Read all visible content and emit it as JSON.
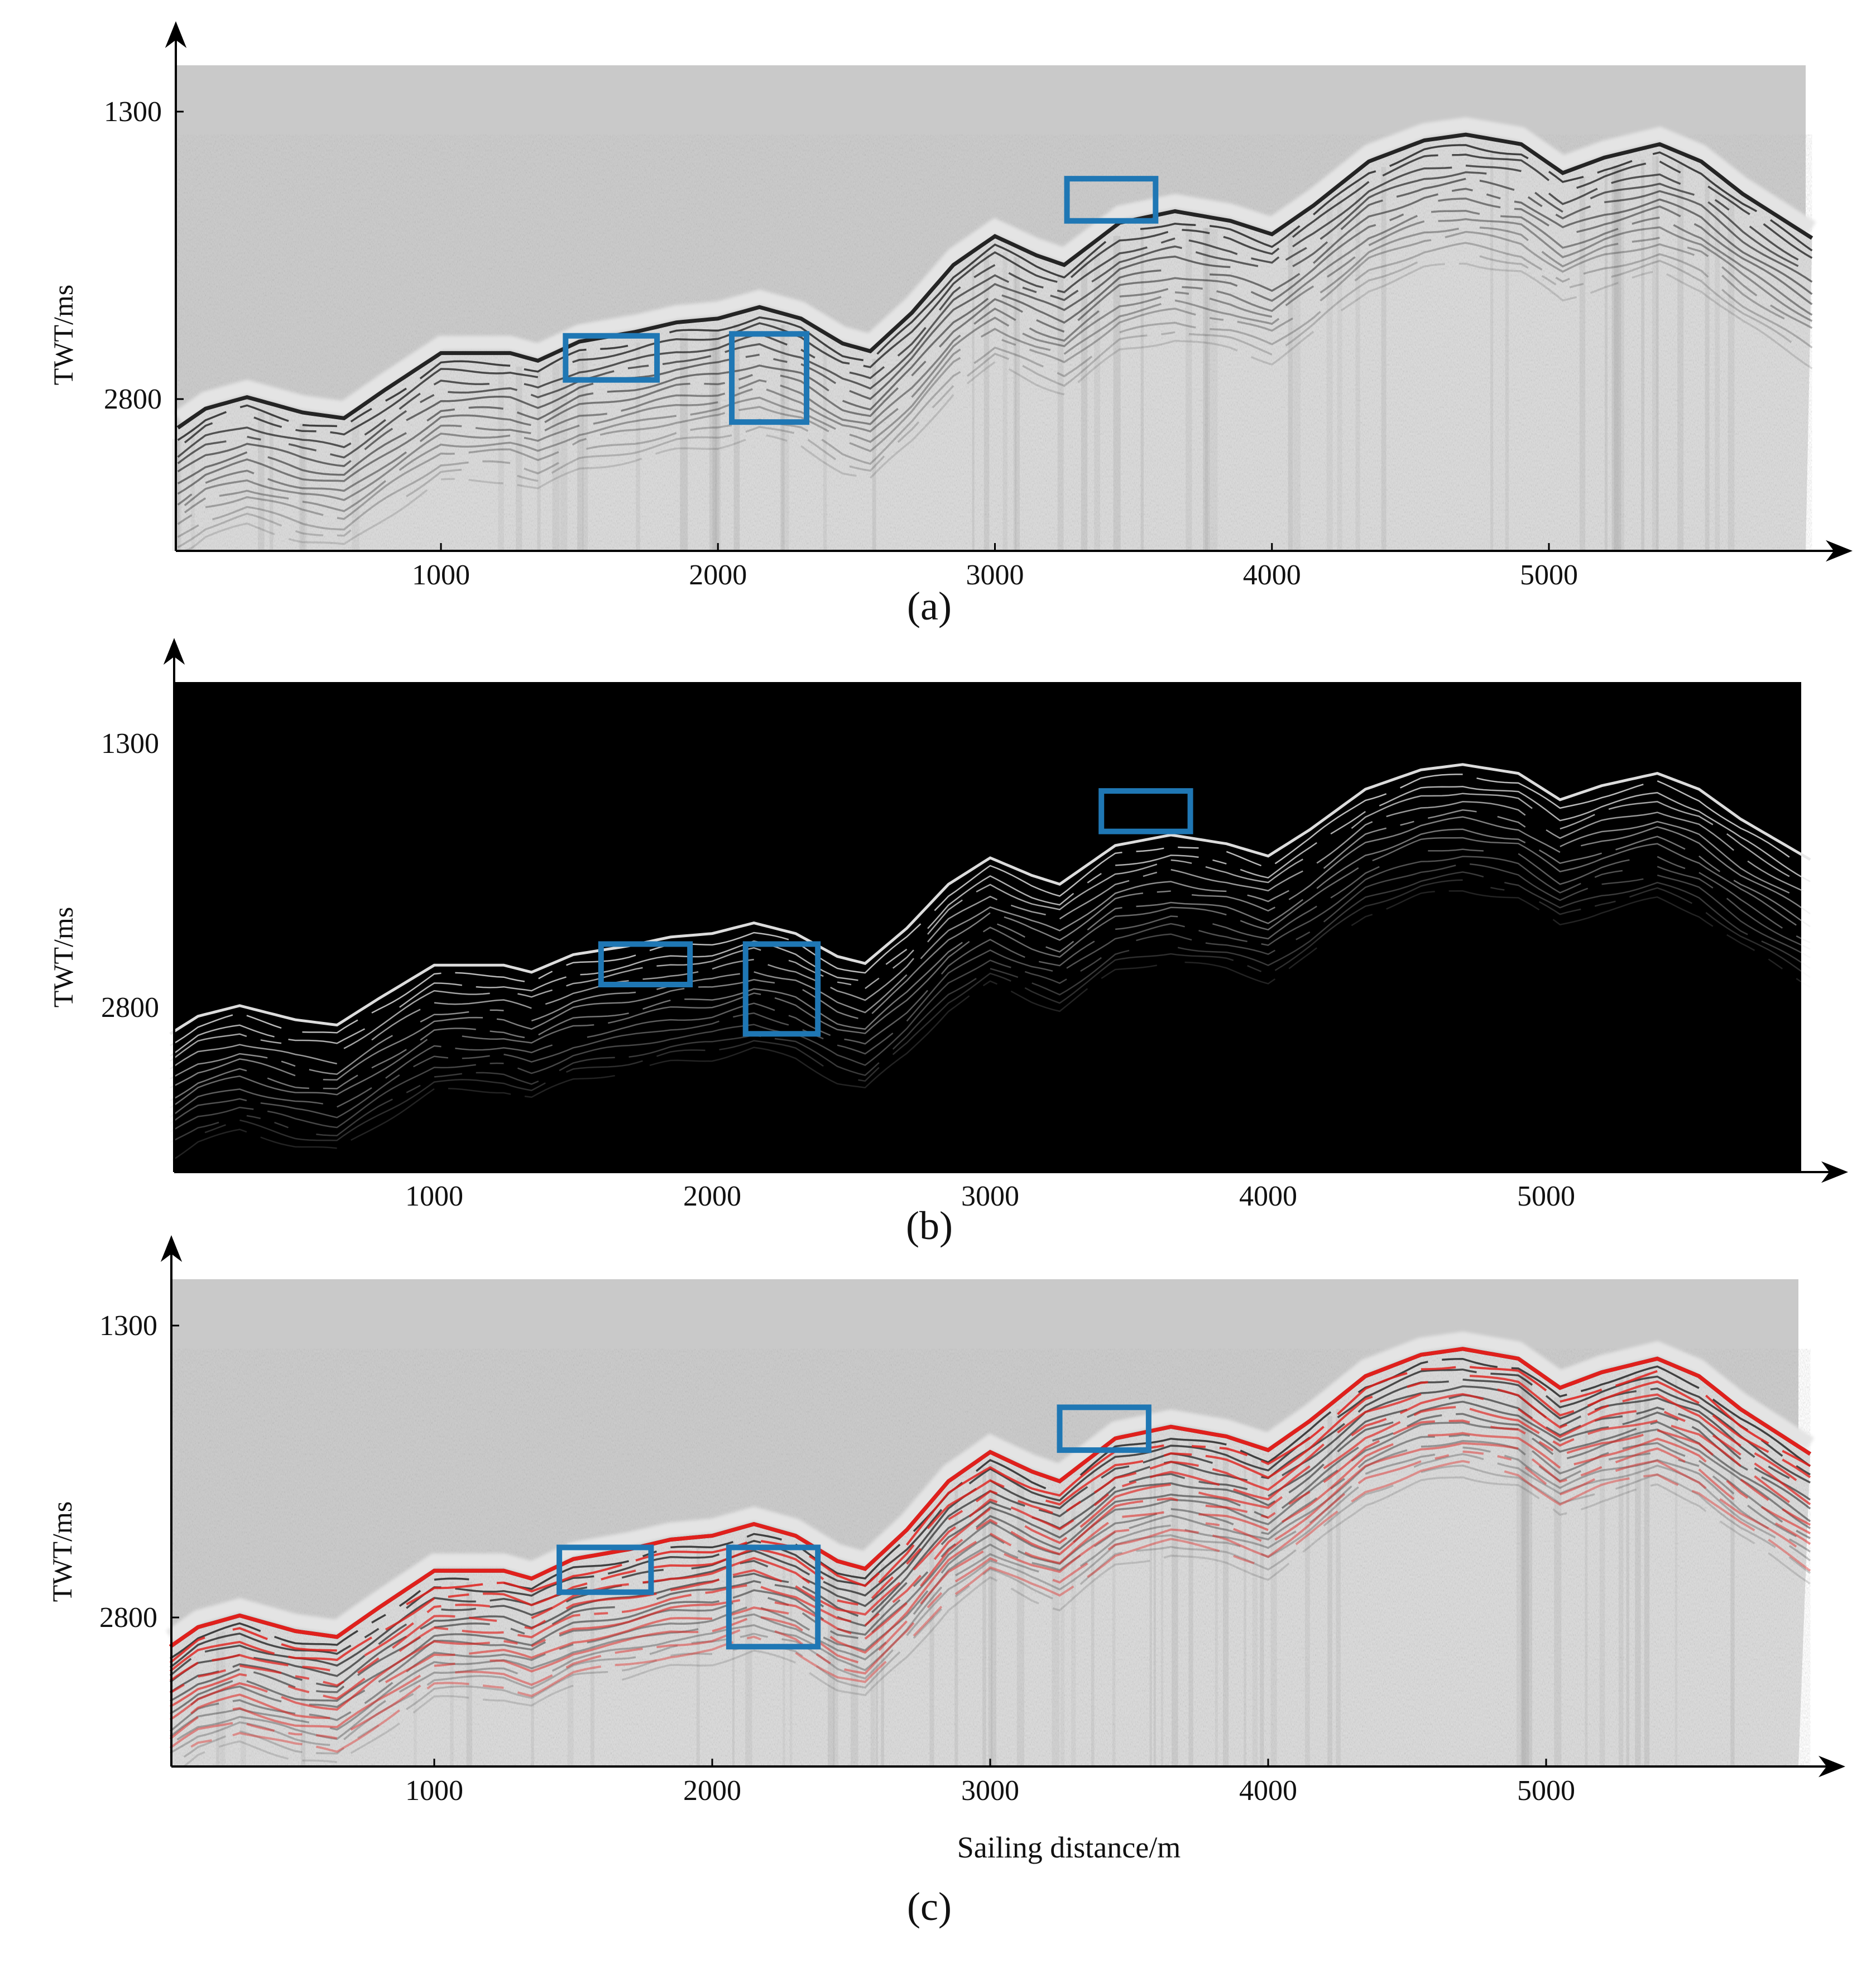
{
  "figure": {
    "description_labels": [
      "(a)",
      "(b)",
      "(c)"
    ]
  },
  "chart_data": [
    {
      "type": "heatmap",
      "panel_label": "(a)",
      "style": "grayscale seismic section",
      "ylabel": "TWT/ms",
      "xlabel": "",
      "x_ticks": [
        1000,
        2000,
        3000,
        4000,
        5000
      ],
      "y_ticks": [
        1300,
        2800
      ],
      "xlim": [
        50,
        5950
      ],
      "seafloor_profile": {
        "x": [
          50,
          150,
          300,
          500,
          650,
          800,
          1000,
          1250,
          1350,
          1500,
          1700,
          1850,
          2000,
          2150,
          2300,
          2450,
          2550,
          2700,
          2850,
          3000,
          3150,
          3250,
          3450,
          3650,
          3850,
          4000,
          4150,
          4350,
          4550,
          4700,
          4900,
          5050,
          5200,
          5400,
          5550,
          5700,
          5950
        ],
        "twt": [
          2950,
          2850,
          2790,
          2870,
          2900,
          2750,
          2560,
          2560,
          2600,
          2500,
          2450,
          2400,
          2380,
          2320,
          2380,
          2510,
          2550,
          2350,
          2100,
          1950,
          2050,
          2100,
          1880,
          1820,
          1870,
          1940,
          1790,
          1560,
          1450,
          1420,
          1470,
          1620,
          1540,
          1470,
          1560,
          1730,
          1960
        ]
      },
      "highlight_boxes": [
        {
          "x_range": [
            1450,
            1780
          ],
          "twt_range": [
            2470,
            2700
          ]
        },
        {
          "x_range": [
            2050,
            2320
          ],
          "twt_range": [
            2460,
            2920
          ]
        },
        {
          "x_range": [
            3260,
            3580
          ],
          "twt_range": [
            1650,
            1870
          ]
        }
      ]
    },
    {
      "type": "heatmap",
      "panel_label": "(b)",
      "style": "edge-detection on black background",
      "ylabel": "TWT/ms",
      "xlabel": "",
      "x_ticks": [
        1000,
        2000,
        3000,
        4000,
        5000
      ],
      "y_ticks": [
        1300,
        2800
      ],
      "xlim": [
        50,
        5950
      ],
      "seafloor_profile": {
        "x": [
          50,
          150,
          300,
          500,
          650,
          800,
          1000,
          1250,
          1350,
          1500,
          1700,
          1850,
          2000,
          2150,
          2300,
          2450,
          2550,
          2700,
          2850,
          3000,
          3150,
          3250,
          3450,
          3650,
          3850,
          4000,
          4150,
          4350,
          4550,
          4700,
          4900,
          5050,
          5200,
          5400,
          5550,
          5700,
          5950
        ],
        "twt": [
          2950,
          2850,
          2790,
          2870,
          2900,
          2750,
          2560,
          2560,
          2600,
          2500,
          2450,
          2400,
          2380,
          2320,
          2380,
          2510,
          2550,
          2350,
          2100,
          1950,
          2050,
          2100,
          1880,
          1820,
          1870,
          1940,
          1790,
          1560,
          1450,
          1420,
          1470,
          1620,
          1540,
          1470,
          1560,
          1730,
          1960
        ]
      },
      "highlight_boxes": [
        {
          "x_range": [
            1600,
            1920
          ],
          "twt_range": [
            2440,
            2670
          ]
        },
        {
          "x_range": [
            2120,
            2380
          ],
          "twt_range": [
            2440,
            2950
          ]
        },
        {
          "x_range": [
            3400,
            3720
          ],
          "twt_range": [
            1570,
            1800
          ]
        }
      ]
    },
    {
      "type": "heatmap",
      "panel_label": "(c)",
      "style": "grayscale seismic section with red picked horizons",
      "ylabel": "TWT/ms",
      "xlabel": "Sailing distance/m",
      "x_ticks": [
        1000,
        2000,
        3000,
        4000,
        5000
      ],
      "y_ticks": [
        1300,
        2800
      ],
      "xlim": [
        50,
        5950
      ],
      "seafloor_profile": {
        "x": [
          50,
          150,
          300,
          500,
          650,
          800,
          1000,
          1250,
          1350,
          1500,
          1700,
          1850,
          2000,
          2150,
          2300,
          2450,
          2550,
          2700,
          2850,
          3000,
          3150,
          3250,
          3450,
          3650,
          3850,
          4000,
          4150,
          4350,
          4550,
          4700,
          4900,
          5050,
          5200,
          5400,
          5550,
          5700,
          5950
        ],
        "twt": [
          2950,
          2850,
          2790,
          2870,
          2900,
          2750,
          2560,
          2560,
          2600,
          2500,
          2450,
          2400,
          2380,
          2320,
          2380,
          2510,
          2550,
          2350,
          2100,
          1950,
          2050,
          2100,
          1880,
          1820,
          1870,
          1940,
          1790,
          1560,
          1450,
          1420,
          1470,
          1620,
          1540,
          1470,
          1560,
          1730,
          1960
        ]
      },
      "highlight_boxes": [
        {
          "x_range": [
            1450,
            1780
          ],
          "twt_range": [
            2440,
            2670
          ]
        },
        {
          "x_range": [
            2060,
            2380
          ],
          "twt_range": [
            2440,
            2950
          ]
        },
        {
          "x_range": [
            3250,
            3570
          ],
          "twt_range": [
            1720,
            1940
          ]
        }
      ]
    }
  ],
  "colors": {
    "panel_gray": "#c9c9c9",
    "panel_black": "#000000",
    "reflector_dark": "#1a1a1a",
    "reflector_light": "#e8e8e8",
    "horizon_red": "#e0201c",
    "box_blue": "#1f77b4",
    "axis": "#000000"
  }
}
